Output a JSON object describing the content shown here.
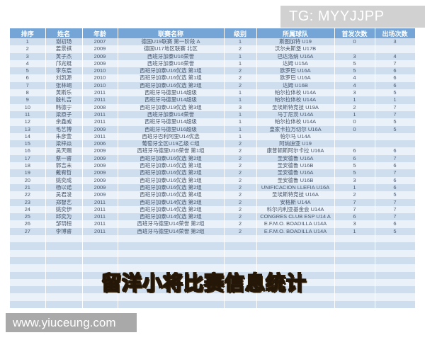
{
  "watermarks": {
    "top_right": "TG: MYYJJPP",
    "bottom_left": "www.yiuceung.com"
  },
  "title": {
    "text": "留洋小将比赛信息统计",
    "color": "#d2a75f"
  },
  "colors": {
    "header_bg": "#74a5d6",
    "band_dark": "#cfdeef",
    "band_light": "#eaf1f9",
    "title_gold": "#d2a75f",
    "watermark_gray": "#a9a9a9"
  },
  "table": {
    "headers": [
      "排序",
      "姓名",
      "年龄",
      "联赛名称",
      "级别",
      "所属球队",
      "首发次数",
      "出场次数"
    ],
    "empty_row_count": 10,
    "rows": [
      [
        "1",
        "谢初玚",
        "2007",
        "德国U19联赛 第一阶段 A",
        "1",
        "斯图加特 U19",
        "0",
        "3"
      ],
      [
        "2",
        "姜景祺",
        "2009",
        "德国U17地区联赛 北区",
        "2",
        "沃尔夫斯堡 U17B",
        "",
        ""
      ],
      [
        "3",
        "黄子杰",
        "2009",
        "西班牙加泰U16荣誉",
        "1",
        "巴达洛纳 U16A",
        "3",
        "4"
      ],
      [
        "4",
        "邝兆铤",
        "2009",
        "西班牙加泰U16荣誉",
        "1",
        "达姆 U15A",
        "5",
        "7"
      ],
      [
        "5",
        "李东宸",
        "2010",
        "西班牙加泰U16优选 第1组",
        "2",
        "欧罗巴 U16A",
        "5",
        "6"
      ],
      [
        "6",
        "刘凯源",
        "2010",
        "西班牙加泰U16优选 第1组",
        "2",
        "欧罗巴 U16A",
        "4",
        "6"
      ],
      [
        "7",
        "张林峒",
        "2010",
        "西班牙加泰U16优选 第2组",
        "2",
        "达姆 U16B",
        "4",
        "6"
      ],
      [
        "8",
        "黄斯乐",
        "2011",
        "西班牙马德里U14超级",
        "1",
        "帕尔拉体校 U14A",
        "3",
        "5"
      ],
      [
        "9",
        "殷礼吉",
        "2011",
        "西班牙马德里U14超级",
        "1",
        "帕尔拉体校 U14A",
        "1",
        "1"
      ],
      [
        "10",
        "韩德宁",
        "2008",
        "西班牙加泰U19优选 第3组",
        "3",
        "圣埃斯特竞技 U19A",
        "2",
        "7"
      ],
      [
        "11",
        "梁原子",
        "2011",
        "西班牙加泰U14荣誉",
        "1",
        "马丁尼茨 U14A",
        "1",
        "7"
      ],
      [
        "12",
        "余鑫威",
        "2011",
        "西班牙马德里U14超级",
        "1",
        "帕尔拉体校 U14A",
        "0",
        "5"
      ],
      [
        "13",
        "毛艺博",
        "2009",
        "西班牙马德里U16超级",
        "1",
        "皇家卡拉万切尔 U16A",
        "0",
        "5"
      ],
      [
        "14",
        "朱彦萱",
        "2011",
        "西班牙巴利阿里U14优选",
        "1",
        "帕尔马 U14A",
        "",
        ""
      ],
      [
        "15",
        "梁梓焱",
        "2006",
        "葡萄牙全区U19乙级 C组",
        "2",
        "阿纳迪亚 U19",
        "",
        ""
      ],
      [
        "16",
        "吴天赐",
        "2009",
        "西班牙马德里U16荣誉 第1组",
        "2",
        "康普顿斯阿尔卡拉 U16A",
        "6",
        "6"
      ],
      [
        "17",
        "蔡一睿",
        "2009",
        "西班牙加泰U16优选 第2组",
        "2",
        "圣安德鲁 U16A",
        "6",
        "7"
      ],
      [
        "18",
        "郭吉末",
        "2009",
        "西班牙加泰U16优选 第1组",
        "2",
        "圣安德鲁 U16B",
        "5",
        "6"
      ],
      [
        "19",
        "戴宥哲",
        "2009",
        "西班牙加泰U16优选 第2组",
        "2",
        "圣安德鲁 U16A",
        "5",
        "7"
      ],
      [
        "20",
        "姚奕成",
        "2009",
        "西班牙加泰U16优选 第1组",
        "2",
        "圣安德鲁 U16B",
        "3",
        "6"
      ],
      [
        "21",
        "杨以诺",
        "2009",
        "西班牙加泰U16优选 第2组",
        "2",
        "UNIFICACION LLEFIA U16A",
        "1",
        "6"
      ],
      [
        "22",
        "吴君浚",
        "2009",
        "西班牙加泰U16优选 第4组",
        "2",
        "圣埃斯特竞技 U16A",
        "2",
        "5"
      ],
      [
        "23",
        "郑智艺",
        "2011",
        "西班牙加泰U14优选 第2组",
        "2",
        "安格斯 U14A",
        "7",
        "7"
      ],
      [
        "24",
        "姚奕伊",
        "2011",
        "西班牙加泰U14优选 第2组",
        "2",
        "科尔内利亚基金会 U14A",
        "7",
        "7"
      ],
      [
        "25",
        "邱奕为",
        "2011",
        "西班牙加泰U14优选 第2组",
        "2",
        "CONGRES CLUB ESP U14 A",
        "6",
        "7"
      ],
      [
        "26",
        "邹玥桓",
        "2011",
        "西班牙马德里U14荣誉 第2组",
        "2",
        "E.F.M.O. BOADILLA U14A",
        "3",
        "6"
      ],
      [
        "27",
        "李博睿",
        "2011",
        "西班牙马德里U14荣誉 第2组",
        "2",
        "E.F.M.O. BOADILLA U14A",
        "1",
        "5"
      ]
    ]
  }
}
